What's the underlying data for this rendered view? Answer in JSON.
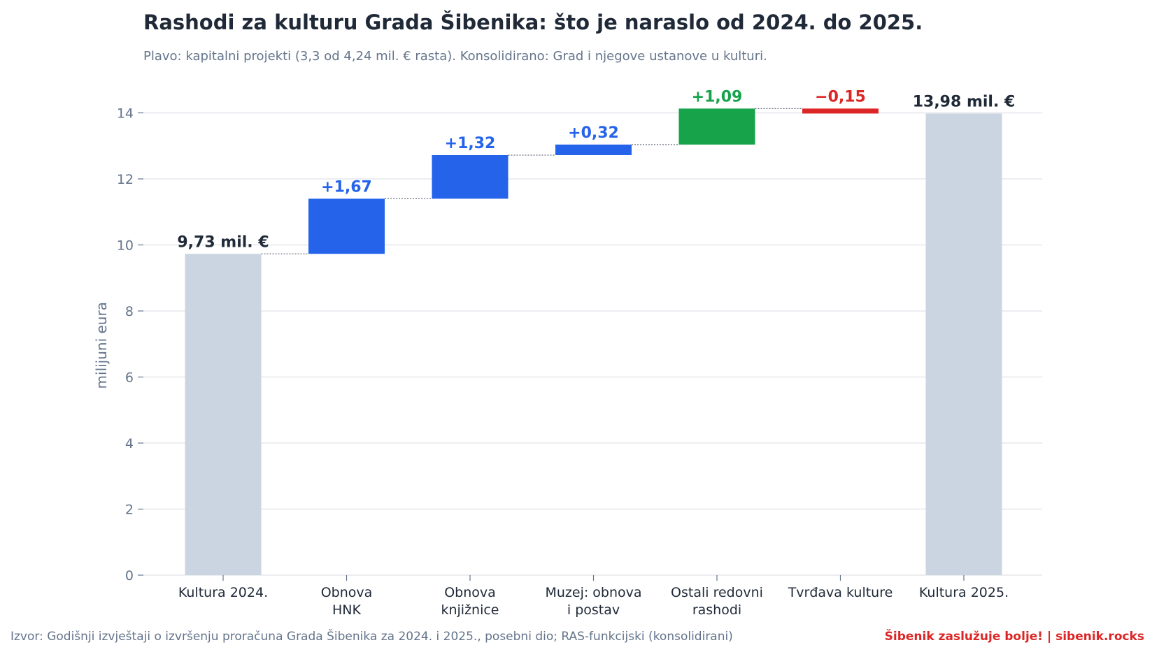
{
  "title": "Rashodi za kulturu Grada Šibenika: što je naraslo od 2024. do 2025.",
  "subtitle": "Plavo: kapitalni projekti (3,3 od 4,24 mil. € rasta). Konsolidirano: Grad i njegove ustanove u kulturi.",
  "source": "Izvor: Godišnji izvještaji o izvršenju proračuna Grada Šibenika za 2024. i 2025., posebni dio; RAS-funkcijski (konsolidirani)",
  "brand": "Šibenik zaslužuje bolje!  |  sibenik.rocks",
  "colors": {
    "total": "#cbd5e1",
    "capital": "#2563eb",
    "increase": "#16a34a",
    "decrease": "#dc2626",
    "total_label": "#1f2937",
    "grid": "#e5e7eb",
    "connector": "#6b7280"
  },
  "chart_data": {
    "type": "bar",
    "subtype": "waterfall",
    "title": "Rashodi za kulturu Grada Šibenika: što je naraslo od 2024. do 2025.",
    "xlabel": "",
    "ylabel": "milijuni eura",
    "ylim": [
      0,
      14.6
    ],
    "yticks": [
      "0",
      "2",
      "4",
      "6",
      "8",
      "10",
      "12",
      "14"
    ],
    "ytick_values": [
      0,
      2,
      4,
      6,
      8,
      10,
      12,
      14
    ],
    "grid": true,
    "categories": [
      [
        "Kultura 2024."
      ],
      [
        "Obnova",
        "HNK"
      ],
      [
        "Obnova",
        "knjižnice"
      ],
      [
        "Muzej: obnova",
        "i postav"
      ],
      [
        "Ostali redovni",
        "rashodi"
      ],
      [
        "Tvrđava kulture"
      ],
      [
        "Kultura 2025."
      ]
    ],
    "bars": [
      {
        "kind": "total",
        "start": 0,
        "end": 9.73,
        "label": "9,73 mil. €"
      },
      {
        "kind": "capital",
        "start": 9.73,
        "end": 11.4,
        "label": "+1,67"
      },
      {
        "kind": "capital",
        "start": 11.4,
        "end": 12.72,
        "label": "+1,32"
      },
      {
        "kind": "capital",
        "start": 12.72,
        "end": 13.04,
        "label": "+0,32"
      },
      {
        "kind": "increase",
        "start": 13.04,
        "end": 14.13,
        "label": "+1,09"
      },
      {
        "kind": "decrease",
        "start": 14.13,
        "end": 13.98,
        "label": "−0,15"
      },
      {
        "kind": "total",
        "start": 0,
        "end": 13.98,
        "label": "13,98 mil. €"
      }
    ]
  }
}
